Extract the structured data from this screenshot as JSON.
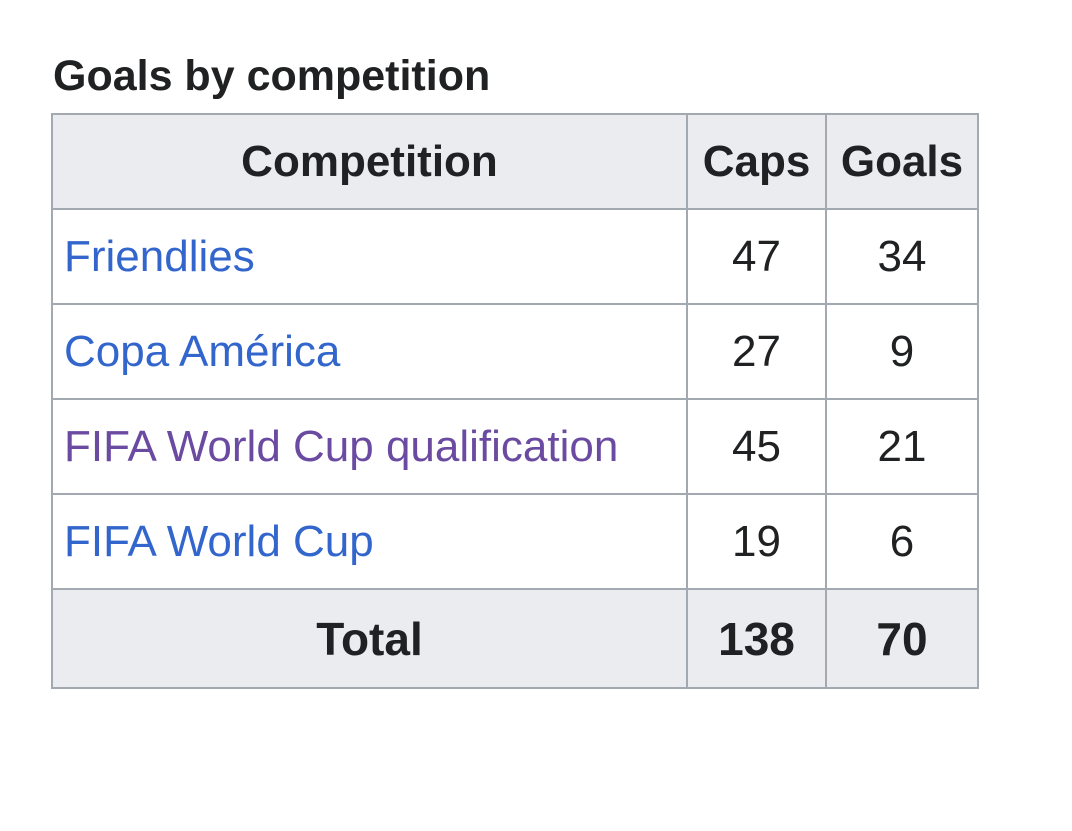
{
  "caption": "Goals by competition",
  "table": {
    "headers": {
      "competition": "Competition",
      "caps": "Caps",
      "goals": "Goals"
    },
    "rows": [
      {
        "competition": "Friendlies",
        "caps": "47",
        "goals": "34",
        "visited": false
      },
      {
        "competition": "Copa América",
        "caps": "27",
        "goals": "9",
        "visited": false
      },
      {
        "competition": "FIFA World Cup qualification",
        "caps": "45",
        "goals": "21",
        "visited": true
      },
      {
        "competition": "FIFA World Cup",
        "caps": "19",
        "goals": "6",
        "visited": false
      }
    ],
    "total": {
      "label": "Total",
      "caps": "138",
      "goals": "70"
    }
  },
  "colors": {
    "link": "#3366cc",
    "visited_link": "#6b4ba1",
    "header_bg": "#eaecf0",
    "border": "#a2a9b1",
    "text": "#202122"
  }
}
